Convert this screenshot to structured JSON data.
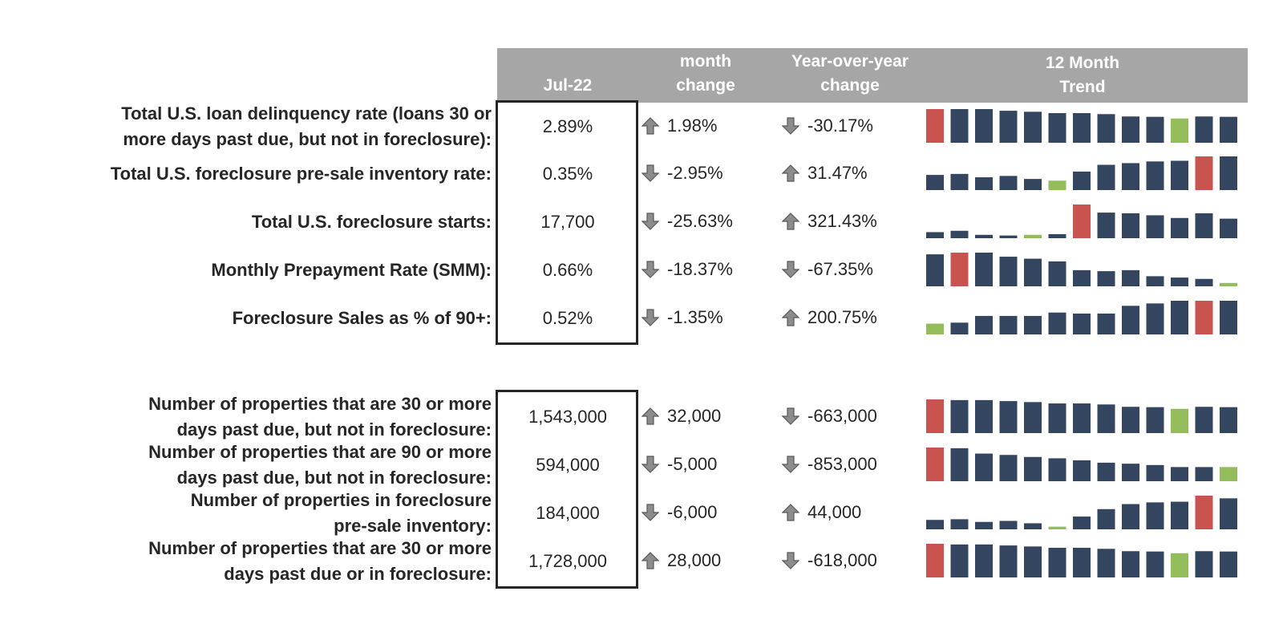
{
  "header": {
    "current": "Jul-22",
    "month": [
      "month",
      "change"
    ],
    "yoy": [
      "Year-over-year",
      "change"
    ],
    "trend": [
      "12 Month",
      "Trend"
    ]
  },
  "colors": {
    "normal": "#34455f",
    "high": "#c9534f",
    "low": "#93bd5a",
    "header": "#a6a6a6",
    "arrow": "#808080"
  },
  "rows": [
    {
      "label": [
        "Total U.S. loan delinquency rate (loans 30 or",
        "more days past due, but not in foreclosure):"
      ],
      "value": "2.89%",
      "mom": "1.98%",
      "mom_dir": "up",
      "yoy": "-30.17%",
      "yoy_dir": "down",
      "trend": [
        1.0,
        1.0,
        1.0,
        0.95,
        0.92,
        0.88,
        0.88,
        0.85,
        0.78,
        0.77,
        0.72,
        0.78,
        0.77
      ],
      "trend_colors": [
        "high",
        "normal",
        "normal",
        "normal",
        "normal",
        "normal",
        "normal",
        "normal",
        "normal",
        "normal",
        "low",
        "normal",
        "normal"
      ]
    },
    {
      "label": [
        "Total U.S. foreclosure pre-sale inventory rate:"
      ],
      "value": "0.35%",
      "mom": "-2.95%",
      "mom_dir": "down",
      "yoy": "31.47%",
      "yoy_dir": "up",
      "trend": [
        0.45,
        0.48,
        0.38,
        0.42,
        0.33,
        0.28,
        0.55,
        0.75,
        0.8,
        0.85,
        0.87,
        1.0,
        1.0
      ],
      "trend_colors": [
        "normal",
        "normal",
        "normal",
        "normal",
        "normal",
        "low",
        "normal",
        "normal",
        "normal",
        "normal",
        "normal",
        "high",
        "normal"
      ]
    },
    {
      "label": [
        "Total U.S. foreclosure starts:"
      ],
      "value": "17,700",
      "mom": "-25.63%",
      "mom_dir": "down",
      "yoy": "321.43%",
      "yoy_dir": "up",
      "trend": [
        0.18,
        0.22,
        0.1,
        0.08,
        0.1,
        0.12,
        1.0,
        0.76,
        0.74,
        0.68,
        0.6,
        0.74,
        0.58
      ],
      "trend_colors": [
        "normal",
        "normal",
        "normal",
        "normal",
        "low",
        "normal",
        "high",
        "normal",
        "normal",
        "normal",
        "normal",
        "normal",
        "normal"
      ]
    },
    {
      "label": [
        "Monthly Prepayment Rate (SMM):"
      ],
      "value": "0.66%",
      "mom": "-18.37%",
      "mom_dir": "down",
      "yoy": "-67.35%",
      "yoy_dir": "down",
      "trend": [
        0.95,
        1.0,
        1.0,
        0.88,
        0.82,
        0.74,
        0.48,
        0.45,
        0.48,
        0.3,
        0.26,
        0.22,
        0.1
      ],
      "trend_colors": [
        "normal",
        "high",
        "normal",
        "normal",
        "normal",
        "normal",
        "normal",
        "normal",
        "normal",
        "normal",
        "normal",
        "normal",
        "low"
      ]
    },
    {
      "label": [
        "Foreclosure Sales as % of 90+:"
      ],
      "value": "0.52%",
      "mom": "-1.35%",
      "mom_dir": "down",
      "yoy": "200.75%",
      "yoy_dir": "up",
      "trend": [
        0.32,
        0.35,
        0.55,
        0.55,
        0.55,
        0.65,
        0.62,
        0.62,
        0.85,
        0.92,
        1.0,
        1.0,
        1.0
      ],
      "trend_colors": [
        "low",
        "normal",
        "normal",
        "normal",
        "normal",
        "normal",
        "normal",
        "normal",
        "normal",
        "normal",
        "normal",
        "high",
        "normal"
      ]
    },
    {
      "label": [
        "Number of properties that are 30 or more",
        "days past due, but not in foreclosure:"
      ],
      "value": "1,543,000",
      "mom": "32,000",
      "mom_dir": "up",
      "yoy": "-663,000",
      "yoy_dir": "down",
      "trend": [
        1.0,
        0.98,
        0.98,
        0.95,
        0.92,
        0.88,
        0.88,
        0.85,
        0.78,
        0.77,
        0.72,
        0.78,
        0.77
      ],
      "trend_colors": [
        "high",
        "normal",
        "normal",
        "normal",
        "normal",
        "normal",
        "normal",
        "normal",
        "normal",
        "normal",
        "low",
        "normal",
        "normal"
      ]
    },
    {
      "label": [
        "Number of properties that are 90 or more",
        "days past due, but not in foreclosure:"
      ],
      "value": "594,000",
      "mom": "-5,000",
      "mom_dir": "down",
      "yoy": "-853,000",
      "yoy_dir": "down",
      "trend": [
        1.0,
        0.98,
        0.82,
        0.78,
        0.72,
        0.68,
        0.62,
        0.55,
        0.52,
        0.48,
        0.42,
        0.42,
        0.42
      ],
      "trend_colors": [
        "high",
        "normal",
        "normal",
        "normal",
        "normal",
        "normal",
        "normal",
        "normal",
        "normal",
        "normal",
        "normal",
        "normal",
        "low"
      ]
    },
    {
      "label": [
        "Number of properties in foreclosure",
        "pre-sale inventory:"
      ],
      "value": "184,000",
      "mom": "-6,000",
      "mom_dir": "down",
      "yoy": "44,000",
      "yoy_dir": "up",
      "trend": [
        0.28,
        0.3,
        0.22,
        0.25,
        0.18,
        0.08,
        0.38,
        0.6,
        0.75,
        0.8,
        0.82,
        1.0,
        0.92
      ],
      "trend_colors": [
        "normal",
        "normal",
        "normal",
        "normal",
        "normal",
        "low",
        "normal",
        "normal",
        "normal",
        "normal",
        "normal",
        "high",
        "normal"
      ]
    },
    {
      "label": [
        "Number of properties that are 30 or more",
        "days past due or in foreclosure:"
      ],
      "value": "1,728,000",
      "mom": "28,000",
      "mom_dir": "up",
      "yoy": "-618,000",
      "yoy_dir": "down",
      "trend": [
        1.0,
        0.98,
        0.98,
        0.95,
        0.92,
        0.88,
        0.88,
        0.85,
        0.78,
        0.77,
        0.72,
        0.78,
        0.77
      ],
      "trend_colors": [
        "high",
        "normal",
        "normal",
        "normal",
        "normal",
        "normal",
        "normal",
        "normal",
        "normal",
        "normal",
        "low",
        "normal",
        "normal"
      ]
    }
  ],
  "chart_data": {
    "type": "table",
    "columns": [
      "Jul-22",
      "month change",
      "Year-over-year change",
      "12 Month Trend"
    ],
    "rows": [
      [
        "Total U.S. loan delinquency rate (loans 30 or more days past due, but not in foreclosure):",
        "2.89%",
        "1.98%",
        "-30.17%"
      ],
      [
        "Total U.S. foreclosure pre-sale inventory rate:",
        "0.35%",
        "-2.95%",
        "31.47%"
      ],
      [
        "Total U.S. foreclosure starts:",
        "17,700",
        "-25.63%",
        "321.43%"
      ],
      [
        "Monthly Prepayment Rate (SMM):",
        "0.66%",
        "-18.37%",
        "-67.35%"
      ],
      [
        "Foreclosure Sales as % of 90+:",
        "0.52%",
        "-1.35%",
        "200.75%"
      ],
      [
        "Number of properties that are 30 or more days past due, but not in foreclosure:",
        "1,543,000",
        "32,000",
        "-663,000"
      ],
      [
        "Number of properties that are 90 or more days past due, but not in foreclosure:",
        "594,000",
        "-5,000",
        "-853,000"
      ],
      [
        "Number of properties in foreclosure pre-sale inventory:",
        "184,000",
        "-6,000",
        "44,000"
      ],
      [
        "Number of properties that are 30 or more days past due or in foreclosure:",
        "1,728,000",
        "28,000",
        "-618,000"
      ]
    ]
  }
}
